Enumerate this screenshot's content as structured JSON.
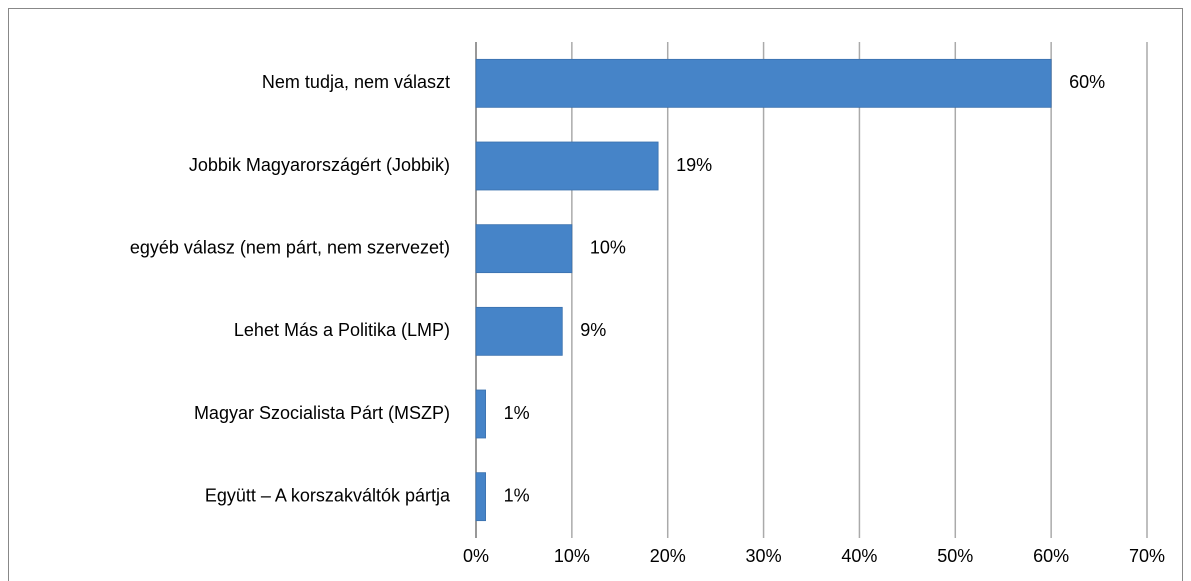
{
  "chart_data": {
    "type": "bar",
    "orientation": "horizontal",
    "categories": [
      "Nem tudja, nem választ",
      "Jobbik Magyarországért (Jobbik)",
      "egyéb válasz (nem párt, nem szervezet)",
      "Lehet Más a Politika (LMP)",
      "Magyar Szocialista Párt (MSZP)",
      "Együtt – A korszakváltók pártja"
    ],
    "values": [
      60,
      19,
      10,
      9,
      1,
      1
    ],
    "value_labels": [
      "60%",
      "19%",
      "10%",
      "9%",
      "1%",
      "1%"
    ],
    "color": "#4684c8",
    "xlim": [
      0,
      70
    ],
    "xticks": [
      {
        "value": 0,
        "label": "0%"
      },
      {
        "value": 10,
        "label": "10%"
      },
      {
        "value": 20,
        "label": "20%"
      },
      {
        "value": 30,
        "label": "30%"
      },
      {
        "value": 40,
        "label": "40%"
      },
      {
        "value": 50,
        "label": "50%"
      },
      {
        "value": 60,
        "label": "60%"
      },
      {
        "value": 70,
        "label": "70%"
      }
    ],
    "grid": true
  }
}
